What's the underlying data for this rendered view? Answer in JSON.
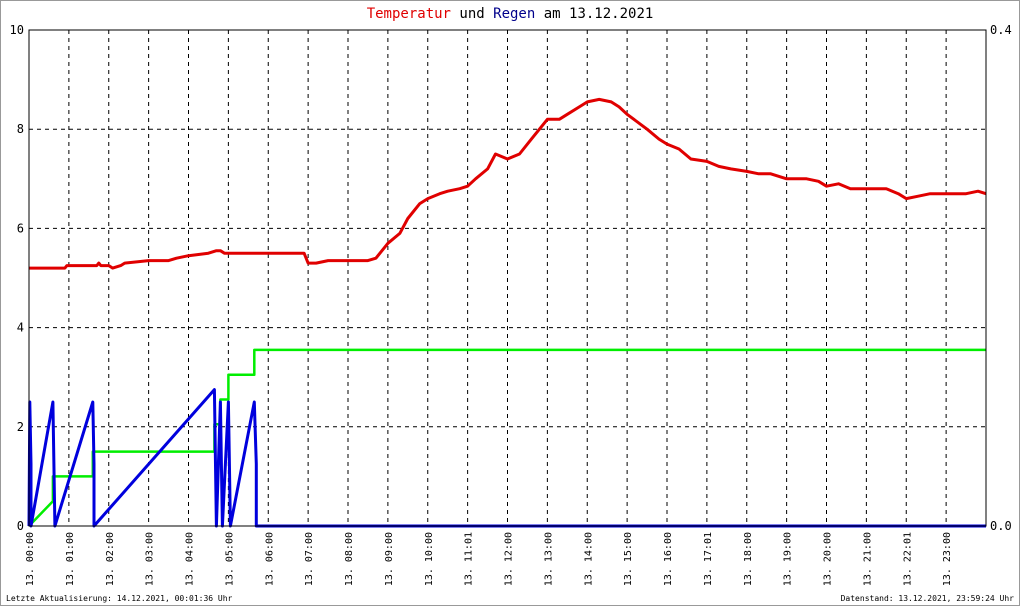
{
  "chart_data": {
    "type": "line",
    "title": {
      "part1": "Temperatur",
      "part2": " und ",
      "part3": "Regen",
      "part4": " am 13.12.2021",
      "part1_color": "#e00000",
      "part3_color": "#00008b"
    },
    "ylim_left": [
      0,
      10
    ],
    "ylim_right": [
      0,
      0.4
    ],
    "y_ticks_left": [
      "0",
      "2",
      "4",
      "6",
      "8",
      "10"
    ],
    "y_ticks_right": [
      "0.0",
      "0.4"
    ],
    "x_range_hours": [
      0,
      24
    ],
    "x_tick_labels": [
      "13. 00:00",
      "13. 01:00",
      "13. 02:00",
      "13. 03:00",
      "13. 04:00",
      "13. 05:00",
      "13. 06:00",
      "13. 07:00",
      "13. 08:00",
      "13. 09:00",
      "13. 10:00",
      "13. 11:01",
      "13. 12:00",
      "13. 13:00",
      "13. 14:00",
      "13. 15:00",
      "13. 16:00",
      "13. 17:01",
      "13. 18:00",
      "13. 19:00",
      "13. 20:00",
      "13. 21:00",
      "13. 22:01",
      "13. 23:00"
    ],
    "grid": true,
    "series": [
      {
        "color": "#e00000",
        "axis": "left",
        "x": [
          0,
          0.9,
          0.95,
          1.7,
          1.75,
          1.8,
          1.9,
          2.0,
          2.1,
          2.3,
          2.4,
          3.0,
          3.5,
          3.7,
          4.0,
          4.5,
          4.7,
          4.8,
          4.9,
          5.5,
          6.0,
          6.5,
          6.9,
          7.0,
          7.2,
          7.5,
          8.0,
          8.5,
          8.7,
          9.0,
          9.3,
          9.5,
          9.8,
          10.0,
          10.3,
          10.5,
          10.8,
          11.0,
          11.2,
          11.5,
          11.7,
          12.0,
          12.3,
          12.6,
          12.8,
          13.0,
          13.3,
          13.5,
          13.8,
          14.0,
          14.3,
          14.6,
          14.8,
          15.0,
          15.5,
          15.8,
          16.0,
          16.3,
          16.6,
          17.0,
          17.3,
          17.6,
          18.0,
          18.3,
          18.6,
          19.0,
          19.5,
          19.8,
          20.0,
          20.3,
          20.6,
          21.0,
          21.5,
          21.8,
          22.0,
          22.3,
          22.6,
          23.0,
          23.5,
          23.8,
          24.0
        ],
        "values": [
          5.2,
          5.2,
          5.25,
          5.25,
          5.3,
          5.25,
          5.25,
          5.25,
          5.2,
          5.25,
          5.3,
          5.35,
          5.35,
          5.4,
          5.45,
          5.5,
          5.55,
          5.55,
          5.5,
          5.5,
          5.5,
          5.5,
          5.5,
          5.3,
          5.3,
          5.35,
          5.35,
          5.35,
          5.4,
          5.7,
          5.9,
          6.2,
          6.5,
          6.6,
          6.7,
          6.75,
          6.8,
          6.85,
          7.0,
          7.2,
          7.5,
          7.4,
          7.5,
          7.8,
          8.0,
          8.2,
          8.2,
          8.3,
          8.45,
          8.55,
          8.6,
          8.55,
          8.45,
          8.3,
          8.0,
          7.8,
          7.7,
          7.6,
          7.4,
          7.35,
          7.25,
          7.2,
          7.15,
          7.1,
          7.1,
          7.0,
          7.0,
          6.95,
          6.85,
          6.9,
          6.8,
          6.8,
          6.8,
          6.7,
          6.6,
          6.65,
          6.7,
          6.7,
          6.7,
          6.75,
          6.7
        ]
      },
      {
        "color": "#00ee00",
        "axis": "left",
        "x": [
          0,
          0.6,
          0.6,
          1.6,
          1.6,
          4.65,
          4.65,
          4.8,
          4.8,
          5.0,
          5.0,
          5.65,
          5.65,
          24.0
        ],
        "values": [
          0,
          0.5,
          1.0,
          1.0,
          1.5,
          1.5,
          2.05,
          2.05,
          2.55,
          2.55,
          3.05,
          3.05,
          3.55,
          3.55
        ]
      },
      {
        "color": "#0000dd",
        "axis": "right",
        "x": [
          0,
          0.02,
          0.02,
          0.05,
          0.05,
          0.6,
          0.6,
          0.65,
          0.65,
          1.6,
          1.6,
          1.63,
          1.63,
          4.65,
          4.65,
          4.7,
          4.7,
          4.8,
          4.8,
          4.85,
          4.85,
          5.0,
          5.0,
          5.05,
          5.05,
          5.65,
          5.65,
          5.7,
          5.7,
          24.0
        ],
        "values": [
          0,
          0.1,
          0.1,
          0.05,
          0,
          0.1,
          0.1,
          0.0,
          0,
          0.1,
          0.1,
          0.05,
          0,
          0.11,
          0.11,
          0.0,
          0,
          0.1,
          0.1,
          0.0,
          0,
          0.1,
          0.1,
          0.0,
          0,
          0.1,
          0.1,
          0.05,
          0,
          0
        ]
      }
    ],
    "footer_left": "Letzte Aktualisierung: 14.12.2021, 00:01:36 Uhr",
    "footer_right": "Datenstand: 13.12.2021, 23:59:24 Uhr"
  }
}
